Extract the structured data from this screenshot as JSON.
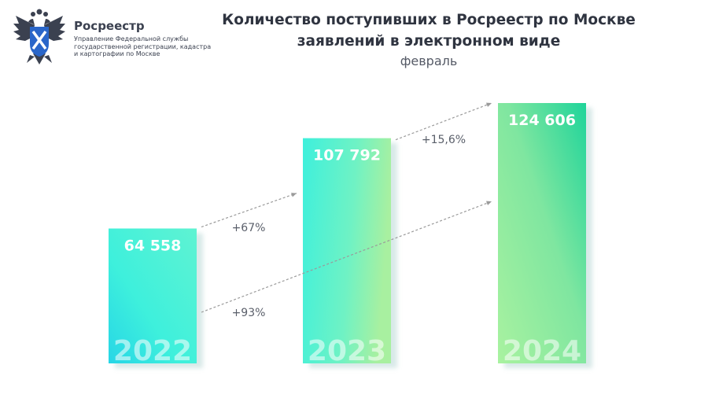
{
  "logo": {
    "brand": "Росреестр",
    "description": "Управление Федеральной службы государственной регистрации, кадастра и картографии по Москве",
    "emblem_icon": "double-headed-eagle-icon"
  },
  "header": {
    "title_line1": "Количество поступивших в Росреестр по Москве",
    "title_line2": "заявлений в электронном виде",
    "subtitle": "февраль"
  },
  "colors": {
    "bar_cyan": "#3ef0dc",
    "bar_green": "#9ef0a4",
    "bar_emerald": "#1fd49a",
    "arrow": "#9a9a9a",
    "text_dark": "#2f3440"
  },
  "chart_data": {
    "type": "bar",
    "categories": [
      "2022",
      "2023",
      "2024"
    ],
    "values": [
      64558,
      107792,
      124606
    ],
    "data_labels": [
      "64 558",
      "107 792",
      "124 606"
    ],
    "annotations": [
      {
        "from": "2022",
        "to": "2023",
        "text": "+67%"
      },
      {
        "from": "2023",
        "to": "2024",
        "text": "+15,6%"
      },
      {
        "from": "2022",
        "to": "2024",
        "text": "+93%"
      }
    ],
    "title": "Количество поступивших в Росреестр по Москве заявлений в электронном виде",
    "subtitle": "февраль",
    "xlabel": "",
    "ylabel": "",
    "ylim": [
      0,
      124606
    ],
    "grid": false,
    "legend": "none"
  }
}
